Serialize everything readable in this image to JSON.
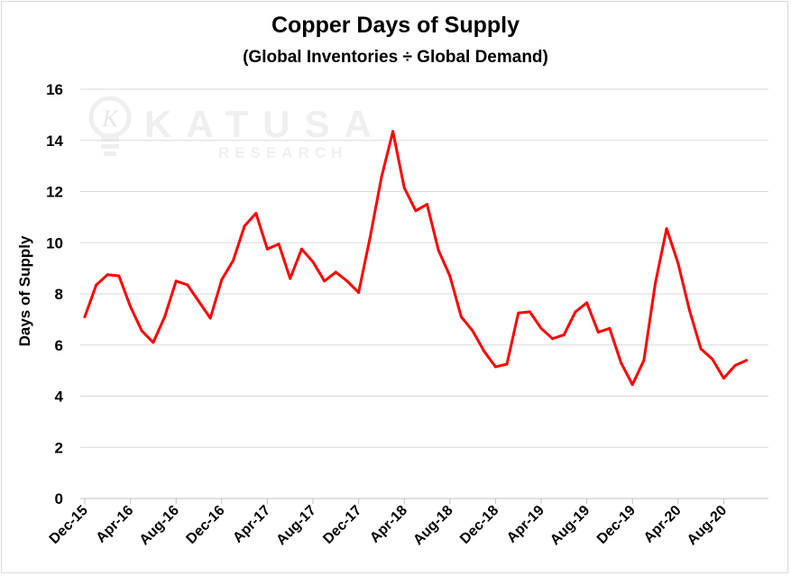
{
  "chart_data": {
    "type": "line",
    "title": "Copper Days of Supply",
    "subtitle": "(Global Inventories ÷ Global Demand)",
    "xlabel": "",
    "ylabel": "Days of Supply",
    "ylim": [
      0,
      16
    ],
    "yticks": [
      0,
      2,
      4,
      6,
      8,
      10,
      12,
      14,
      16
    ],
    "x_tick_labels": [
      {
        "index": 0,
        "label": "Dec-15"
      },
      {
        "index": 4,
        "label": "Apr-16"
      },
      {
        "index": 8,
        "label": "Aug-16"
      },
      {
        "index": 12,
        "label": "Dec-16"
      },
      {
        "index": 16,
        "label": "Apr-17"
      },
      {
        "index": 20,
        "label": "Aug-17"
      },
      {
        "index": 24,
        "label": "Dec-17"
      },
      {
        "index": 28,
        "label": "Apr-18"
      },
      {
        "index": 32,
        "label": "Aug-18"
      },
      {
        "index": 36,
        "label": "Dec-18"
      },
      {
        "index": 40,
        "label": "Apr-19"
      },
      {
        "index": 44,
        "label": "Aug-19"
      },
      {
        "index": 48,
        "label": "Dec-19"
      },
      {
        "index": 52,
        "label": "Apr-20"
      },
      {
        "index": 56,
        "label": "Aug-20"
      }
    ],
    "grid": true,
    "series": [
      {
        "color": "#ff0000",
        "values": [
          7.1,
          8.35,
          8.75,
          8.7,
          7.5,
          6.55,
          6.1,
          7.1,
          8.5,
          8.35,
          7.7,
          7.05,
          8.55,
          9.3,
          10.65,
          11.15,
          9.75,
          9.95,
          8.6,
          9.75,
          9.25,
          8.5,
          8.85,
          8.5,
          8.05,
          10.2,
          12.55,
          14.35,
          12.15,
          11.25,
          11.5,
          9.7,
          8.7,
          7.1,
          6.55,
          5.75,
          5.15,
          5.25,
          7.25,
          7.3,
          6.65,
          6.25,
          6.4,
          7.3,
          7.65,
          6.5,
          6.65,
          5.3,
          4.45,
          5.4,
          8.4,
          10.55,
          9.2,
          7.35,
          5.85,
          5.45,
          4.7,
          5.2,
          5.4
        ]
      }
    ]
  },
  "watermark": {
    "brand": "KATUSA",
    "sub": "RESEARCH",
    "mark": "K"
  }
}
